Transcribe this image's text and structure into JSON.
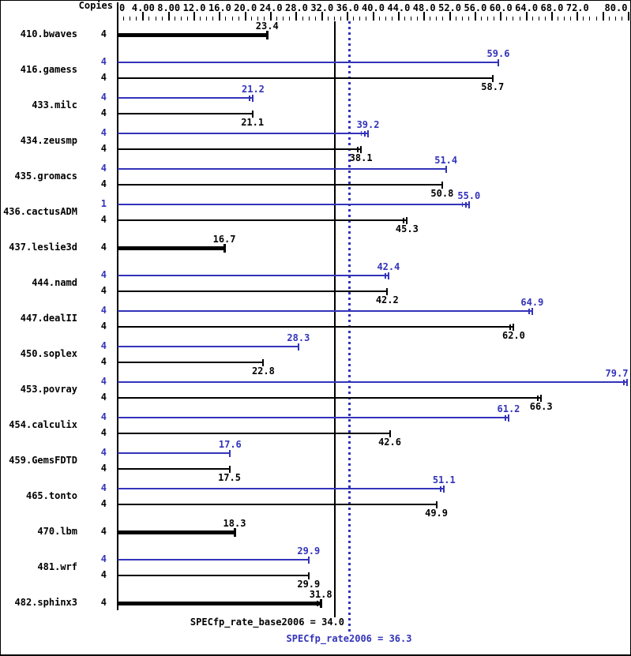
{
  "header": {
    "copies_label": "Copies"
  },
  "colors": {
    "peak": "#3333bb",
    "base": "#000000",
    "background": "#ffffff"
  },
  "axis": {
    "min": 0,
    "max": 80,
    "minor_step": 1,
    "major_step": 4,
    "ticks": [
      {
        "label": "0",
        "value": 0
      },
      {
        "label": "4.00",
        "value": 4
      },
      {
        "label": "8.00",
        "value": 8
      },
      {
        "label": "12.0",
        "value": 12
      },
      {
        "label": "16.0",
        "value": 16
      },
      {
        "label": "20.0",
        "value": 20
      },
      {
        "label": "24.0",
        "value": 24
      },
      {
        "label": "28.0",
        "value": 28
      },
      {
        "label": "32.0",
        "value": 32
      },
      {
        "label": "36.0",
        "value": 36
      },
      {
        "label": "40.0",
        "value": 40
      },
      {
        "label": "44.0",
        "value": 44
      },
      {
        "label": "48.0",
        "value": 48
      },
      {
        "label": "52.0",
        "value": 52
      },
      {
        "label": "56.0",
        "value": 56
      },
      {
        "label": "60.0",
        "value": 60
      },
      {
        "label": "64.0",
        "value": 64
      },
      {
        "label": "68.0",
        "value": 68
      },
      {
        "label": "72.0",
        "value": 72
      },
      {
        "label": "80.0",
        "value": 80
      }
    ]
  },
  "reference_lines": [
    {
      "name": "base",
      "value": 34.0,
      "style": "solid",
      "color": "#000000"
    },
    {
      "name": "peak",
      "value": 36.3,
      "style": "dotted",
      "color": "#3333bb"
    }
  ],
  "summary": {
    "base_label": "SPECfp_rate_base2006 = 34.0",
    "peak_label": "SPECfp_rate2006 = 36.3",
    "base_value": 34.0,
    "peak_value": 36.3
  },
  "chart_data": {
    "type": "bar",
    "orientation": "horizontal",
    "xlim": [
      0,
      80
    ],
    "xlabel": "",
    "ylabel": "",
    "legend": "peak runs are blue (top bar), base runs are black (bottom bar); bold single bars are base-only",
    "benchmarks": [
      {
        "name": "410.bwaves",
        "runs": [
          {
            "series": "base",
            "copies": "4",
            "value": "23.4",
            "bold": true,
            "end": "cap",
            "pre_ticks": 0
          }
        ]
      },
      {
        "name": "416.gamess",
        "runs": [
          {
            "series": "peak",
            "copies": "4",
            "value": "59.6",
            "end": "cap",
            "pre_ticks": 0
          },
          {
            "series": "base",
            "copies": "4",
            "value": "58.7",
            "end": "cap",
            "pre_ticks": 0
          }
        ]
      },
      {
        "name": "433.milc",
        "runs": [
          {
            "series": "peak",
            "copies": "4",
            "value": "21.2",
            "end": "double",
            "pre_ticks": 0
          },
          {
            "series": "base",
            "copies": "4",
            "value": "21.1",
            "end": "cap",
            "pre_ticks": 0
          }
        ]
      },
      {
        "name": "434.zeusmp",
        "runs": [
          {
            "series": "peak",
            "copies": "4",
            "value": "39.2",
            "end": "double",
            "pre_ticks": 1
          },
          {
            "series": "base",
            "copies": "4",
            "value": "38.1",
            "end": "double",
            "pre_ticks": 0
          }
        ]
      },
      {
        "name": "435.gromacs",
        "runs": [
          {
            "series": "peak",
            "copies": "4",
            "value": "51.4",
            "end": "cap",
            "pre_ticks": 0
          },
          {
            "series": "base",
            "copies": "4",
            "value": "50.8",
            "end": "cap",
            "pre_ticks": 0
          }
        ]
      },
      {
        "name": "436.cactusADM",
        "runs": [
          {
            "series": "peak",
            "copies": "1",
            "value": "55.0",
            "end": "double",
            "pre_ticks": 1
          },
          {
            "series": "base",
            "copies": "4",
            "value": "45.3",
            "end": "double",
            "pre_ticks": 0
          }
        ]
      },
      {
        "name": "437.leslie3d",
        "runs": [
          {
            "series": "base",
            "copies": "4",
            "value": "16.7",
            "bold": true,
            "end": "cap",
            "pre_ticks": 0
          }
        ]
      },
      {
        "name": "444.namd",
        "runs": [
          {
            "series": "peak",
            "copies": "4",
            "value": "42.4",
            "end": "double",
            "pre_ticks": 0
          },
          {
            "series": "base",
            "copies": "4",
            "value": "42.2",
            "end": "cap",
            "pre_ticks": 0
          }
        ]
      },
      {
        "name": "447.dealII",
        "runs": [
          {
            "series": "peak",
            "copies": "4",
            "value": "64.9",
            "end": "double",
            "pre_ticks": 0
          },
          {
            "series": "base",
            "copies": "4",
            "value": "62.0",
            "end": "double",
            "pre_ticks": 0
          }
        ]
      },
      {
        "name": "450.soplex",
        "runs": [
          {
            "series": "peak",
            "copies": "4",
            "value": "28.3",
            "end": "cap",
            "pre_ticks": 0
          },
          {
            "series": "base",
            "copies": "4",
            "value": "22.8",
            "end": "cap",
            "pre_ticks": 0
          }
        ]
      },
      {
        "name": "453.povray",
        "runs": [
          {
            "series": "peak",
            "copies": "4",
            "value": "79.7",
            "end": "double",
            "pre_ticks": 0
          },
          {
            "series": "base",
            "copies": "4",
            "value": "66.3",
            "end": "double",
            "pre_ticks": 0
          }
        ]
      },
      {
        "name": "454.calculix",
        "runs": [
          {
            "series": "peak",
            "copies": "4",
            "value": "61.2",
            "end": "double",
            "pre_ticks": 0
          },
          {
            "series": "base",
            "copies": "4",
            "value": "42.6",
            "end": "cap",
            "pre_ticks": 0
          }
        ]
      },
      {
        "name": "459.GemsFDTD",
        "runs": [
          {
            "series": "peak",
            "copies": "4",
            "value": "17.6",
            "end": "cap",
            "pre_ticks": 0
          },
          {
            "series": "base",
            "copies": "4",
            "value": "17.5",
            "end": "cap",
            "pre_ticks": 0
          }
        ]
      },
      {
        "name": "465.tonto",
        "runs": [
          {
            "series": "peak",
            "copies": "4",
            "value": "51.1",
            "end": "double",
            "pre_ticks": 0
          },
          {
            "series": "base",
            "copies": "4",
            "value": "49.9",
            "end": "cap",
            "pre_ticks": 0
          }
        ]
      },
      {
        "name": "470.lbm",
        "runs": [
          {
            "series": "base",
            "copies": "4",
            "value": "18.3",
            "bold": true,
            "end": "cap",
            "pre_ticks": 0
          }
        ]
      },
      {
        "name": "481.wrf",
        "runs": [
          {
            "series": "peak",
            "copies": "4",
            "value": "29.9",
            "end": "cap",
            "pre_ticks": 0
          },
          {
            "series": "base",
            "copies": "4",
            "value": "29.9",
            "end": "cap",
            "pre_ticks": 0
          }
        ]
      },
      {
        "name": "482.sphinx3",
        "runs": [
          {
            "series": "base",
            "copies": "4",
            "value": "31.8",
            "bold": true,
            "end": "double",
            "pre_ticks": 0
          }
        ]
      }
    ]
  }
}
